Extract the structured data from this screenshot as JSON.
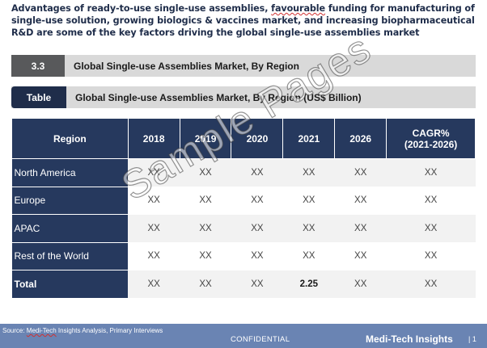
{
  "intro": {
    "part1": "Advantages of ready-to-use single-use assemblies, ",
    "squiggle_word": "favourable",
    "part2": " funding for manufacturing of single-use solution,  growing biologics & vaccines market, and increasing biopharmaceutical R&D are some of the key factors driving the global single-use assemblies market"
  },
  "section_bar": {
    "number": "3.3",
    "title": "Global Single-use Assemblies Market, By Region"
  },
  "table_bar": {
    "tag": "Table",
    "title": "Global Single-use Assemblies Market, By Region (US$ Billion)"
  },
  "table": {
    "headers": [
      "Region",
      "2018",
      "2019",
      "2020",
      "2021",
      "2026",
      "CAGR%",
      "(2021-2026)"
    ],
    "rows": [
      {
        "region": "North America",
        "cells": [
          "XX",
          "XX",
          "XX",
          "XX",
          "XX",
          "XX"
        ]
      },
      {
        "region": "Europe",
        "cells": [
          "XX",
          "XX",
          "XX",
          "XX",
          "XX",
          "XX"
        ]
      },
      {
        "region": "APAC",
        "cells": [
          "XX",
          "XX",
          "XX",
          "XX",
          "XX",
          "XX"
        ]
      },
      {
        "region": "Rest of the World",
        "cells": [
          "XX",
          "XX",
          "XX",
          "XX",
          "XX",
          "XX"
        ]
      },
      {
        "region": "Total",
        "cells": [
          "XX",
          "XX",
          "XX",
          "2.25",
          "XX",
          "XX"
        ]
      }
    ]
  },
  "watermark": "Sample Pages",
  "footer": {
    "source_label": "Source: ",
    "source_brand": "Medi-Tech",
    "source_rest": " Insights  Analysis,  Primary  Interviews",
    "confidential": "CONFIDENTIAL",
    "brand": "Medi-Tech Insights",
    "page": "| 1"
  },
  "colors": {
    "header_navy": "#26395e",
    "section_gray": "#58595b",
    "bar_gray": "#d9d9d9",
    "footer_blue": "#6a84b3",
    "intro_text": "#1f2d4a"
  }
}
